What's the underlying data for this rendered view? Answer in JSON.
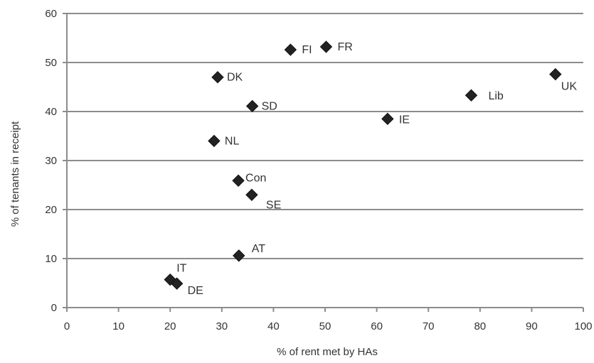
{
  "chart_data": {
    "type": "scatter",
    "title": "",
    "xlabel": "% of rent met by HAs",
    "ylabel": "% of tenants in receipt",
    "xlim": [
      0,
      100
    ],
    "ylim": [
      0,
      60
    ],
    "x_ticks": [
      0,
      10,
      20,
      30,
      40,
      50,
      60,
      70,
      80,
      90,
      100
    ],
    "y_ticks": [
      0,
      10,
      20,
      30,
      40,
      50,
      60
    ],
    "grid": "horizontal",
    "marker": "diamond",
    "marker_color": "#222222",
    "points": [
      {
        "label": "FI",
        "x": 43.3,
        "y": 52.6
      },
      {
        "label": "FR",
        "x": 50.2,
        "y": 53.2
      },
      {
        "label": "DK",
        "x": 29.2,
        "y": 47.0
      },
      {
        "label": "UK",
        "x": 94.6,
        "y": 47.6
      },
      {
        "label": "Lib",
        "x": 78.3,
        "y": 43.3
      },
      {
        "label": "SD",
        "x": 35.9,
        "y": 41.1
      },
      {
        "label": "IE",
        "x": 62.1,
        "y": 38.5
      },
      {
        "label": "NL",
        "x": 28.5,
        "y": 34.0
      },
      {
        "label": "Con",
        "x": 33.2,
        "y": 25.9
      },
      {
        "label": "SE",
        "x": 35.8,
        "y": 23.0
      },
      {
        "label": "AT",
        "x": 33.3,
        "y": 10.6
      },
      {
        "label": "IT",
        "x": 20.0,
        "y": 5.7
      },
      {
        "label": "DE",
        "x": 21.3,
        "y": 4.9
      }
    ]
  }
}
